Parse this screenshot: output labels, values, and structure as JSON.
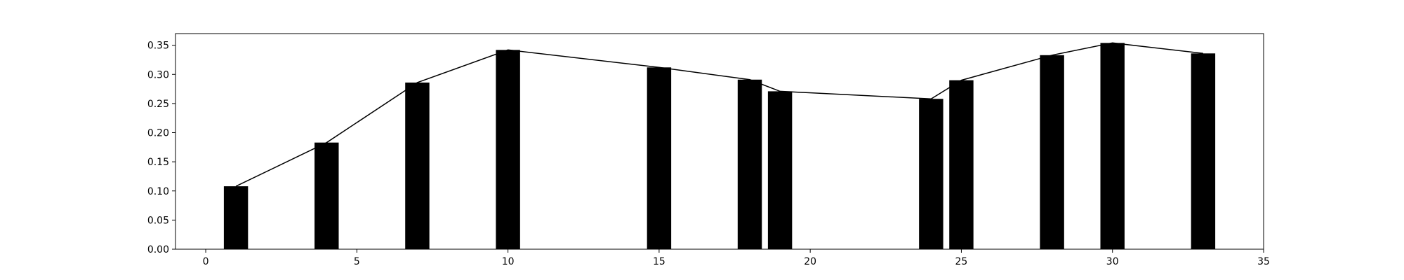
{
  "chart_data": {
    "type": "bar",
    "title": "",
    "xlabel": "",
    "ylabel": "",
    "xlim": [
      -1,
      35
    ],
    "ylim": [
      0,
      0.37
    ],
    "x_ticks": [
      0,
      5,
      10,
      15,
      20,
      25,
      30,
      35
    ],
    "y_ticks": [
      0.0,
      0.05,
      0.1,
      0.15,
      0.2,
      0.25,
      0.3,
      0.35
    ],
    "x_tick_labels": [
      "0",
      "5",
      "10",
      "15",
      "20",
      "25",
      "30",
      "35"
    ],
    "y_tick_labels": [
      "0.00",
      "0.05",
      "0.10",
      "0.15",
      "0.20",
      "0.25",
      "0.30",
      "0.35"
    ],
    "grid": false,
    "bar_color": "#000000",
    "line_color": "#000000",
    "bar_width": 0.8,
    "x": [
      1,
      4,
      7,
      10,
      15,
      18,
      19,
      24,
      25,
      28,
      30,
      33
    ],
    "values": [
      0.108,
      0.183,
      0.286,
      0.342,
      0.312,
      0.291,
      0.271,
      0.258,
      0.29,
      0.333,
      0.354,
      0.336
    ]
  }
}
